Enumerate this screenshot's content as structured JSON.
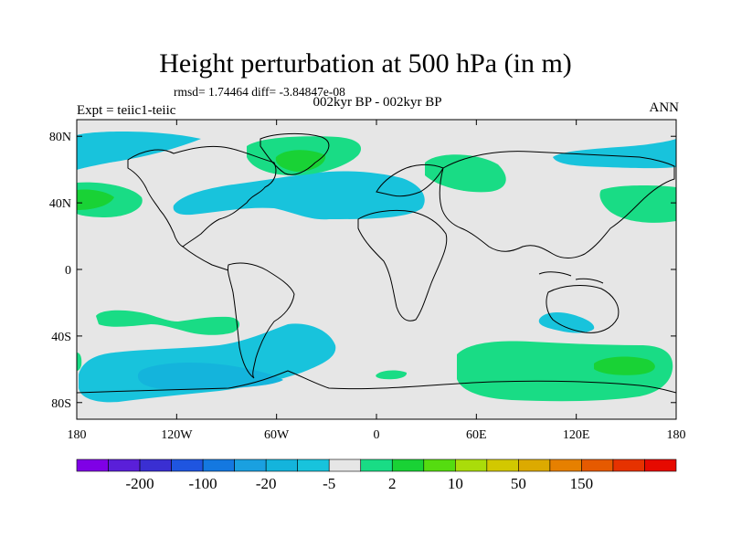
{
  "title": "Height perturbation at 500 hPa (in m)",
  "stats": "rmsd= 1.74464  diff= -3.84847e-08",
  "period": "002kyr BP - 002kyr BP",
  "expt": "Expt = teiic1-teiic",
  "season": "ANN",
  "lat_ticks": [
    {
      "value": 80,
      "label": "80N"
    },
    {
      "value": 40,
      "label": "40N"
    },
    {
      "value": 0,
      "label": "0"
    },
    {
      "value": -40,
      "label": "40S"
    },
    {
      "value": -80,
      "label": "80S"
    }
  ],
  "lon_ticks": [
    {
      "value": -180,
      "label": "180"
    },
    {
      "value": -120,
      "label": "120W"
    },
    {
      "value": -60,
      "label": "60W"
    },
    {
      "value": 0,
      "label": "0"
    },
    {
      "value": 60,
      "label": "60E"
    },
    {
      "value": 120,
      "label": "120E"
    },
    {
      "value": 180,
      "label": "180"
    }
  ],
  "colorbar": {
    "colors": [
      "#7f00e6",
      "#5a1fd9",
      "#3a2fd2",
      "#1f55e0",
      "#1478e0",
      "#1aa0e0",
      "#14b4dc",
      "#18c3dc",
      "#e6e6e6",
      "#19dc85",
      "#19d235",
      "#55dc10",
      "#aadc0a",
      "#d2c800",
      "#dcaa00",
      "#e68000",
      "#e65a00",
      "#e63200",
      "#e60a00"
    ],
    "labels": [
      {
        "after_index": 1,
        "text": "-200"
      },
      {
        "after_index": 3,
        "text": "-100"
      },
      {
        "after_index": 5,
        "text": "-20"
      },
      {
        "after_index": 7,
        "text": "-5"
      },
      {
        "after_index": 9,
        "text": "2"
      },
      {
        "after_index": 11,
        "text": "10"
      },
      {
        "after_index": 13,
        "text": "50"
      },
      {
        "after_index": 15,
        "text": "150"
      }
    ]
  },
  "anomaly_regions": [
    {
      "type": "negative",
      "color": "#18c3dc",
      "region": "North Pacific / Bering Sea"
    },
    {
      "type": "negative",
      "color": "#18c3dc",
      "region": "North Atlantic belt"
    },
    {
      "type": "negative",
      "color": "#18c3dc",
      "region": "NW Pacific 60N"
    },
    {
      "type": "negative",
      "color": "#18c3dc",
      "region": "Southern Pacific"
    },
    {
      "type": "negative",
      "color": "#14b4dc",
      "region": "Southern Pacific core"
    },
    {
      "type": "negative",
      "color": "#18c3dc",
      "region": "Tasman Sea"
    },
    {
      "type": "positive",
      "color": "#19dc85",
      "region": "Greenland"
    },
    {
      "type": "positive",
      "color": "#19d235",
      "region": "Greenland core"
    },
    {
      "type": "positive",
      "color": "#19dc85",
      "region": "Western Russia"
    },
    {
      "type": "positive",
      "color": "#19dc85",
      "region": "NW Pacific 40N"
    },
    {
      "type": "positive",
      "color": "#19dc85",
      "region": "Central North Pacific"
    },
    {
      "type": "positive",
      "color": "#19d235",
      "region": "Central North Pacific core"
    },
    {
      "type": "positive",
      "color": "#19dc85",
      "region": "South Pacific 30S"
    },
    {
      "type": "positive",
      "color": "#19dc85",
      "region": "Southern Indian Ocean"
    },
    {
      "type": "positive",
      "color": "#19d235",
      "region": "Southern Indian Ocean core"
    },
    {
      "type": "positive",
      "color": "#19dc85",
      "region": "South Atlantic"
    }
  ]
}
